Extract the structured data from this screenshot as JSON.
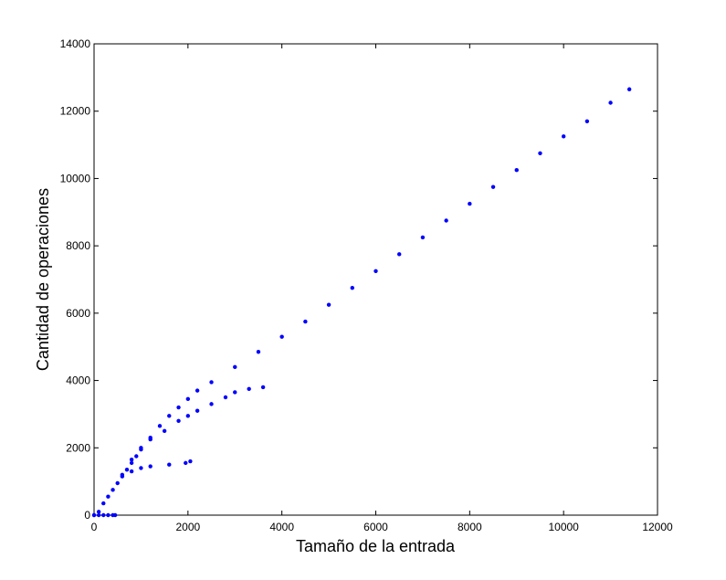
{
  "chart_data": {
    "type": "scatter",
    "title": "",
    "xlabel": "Tamaño de la entrada",
    "ylabel": "Cantidad de operaciones",
    "xlim": [
      0,
      12000
    ],
    "ylim": [
      0,
      14000
    ],
    "x_ticks": [
      0,
      2000,
      4000,
      6000,
      8000,
      10000,
      12000
    ],
    "y_ticks": [
      0,
      2000,
      4000,
      6000,
      8000,
      10000,
      12000,
      14000
    ],
    "grid": false,
    "legend": "none",
    "marker_color": "#0000ff",
    "series": [
      {
        "points": [
          [
            0,
            0
          ],
          [
            100,
            100
          ],
          [
            200,
            350
          ],
          [
            300,
            550
          ],
          [
            400,
            750
          ],
          [
            500,
            950
          ],
          [
            600,
            1150
          ],
          [
            700,
            1350
          ],
          [
            800,
            1550
          ],
          [
            900,
            1750
          ],
          [
            1000,
            1950
          ],
          [
            1200,
            2300
          ],
          [
            1400,
            2650
          ],
          [
            1600,
            2950
          ],
          [
            1800,
            3200
          ],
          [
            2000,
            3450
          ],
          [
            2200,
            3700
          ],
          [
            2500,
            3950
          ],
          [
            3000,
            4400
          ],
          [
            3500,
            4850
          ],
          [
            4000,
            5300
          ],
          [
            4500,
            5750
          ],
          [
            5000,
            6250
          ],
          [
            5500,
            6750
          ],
          [
            6000,
            7250
          ],
          [
            6500,
            7750
          ],
          [
            7000,
            8250
          ],
          [
            7500,
            8750
          ],
          [
            8000,
            9250
          ],
          [
            8500,
            9750
          ],
          [
            9000,
            10250
          ],
          [
            9500,
            10750
          ],
          [
            10000,
            11250
          ],
          [
            10500,
            11700
          ],
          [
            11000,
            12250
          ],
          [
            11400,
            12650
          ]
        ]
      },
      {
        "points": [
          [
            800,
            1650
          ],
          [
            1000,
            2000
          ],
          [
            1200,
            2250
          ],
          [
            1500,
            2500
          ],
          [
            1800,
            2800
          ],
          [
            2000,
            2950
          ],
          [
            2200,
            3100
          ],
          [
            2500,
            3300
          ],
          [
            2800,
            3500
          ],
          [
            3000,
            3650
          ],
          [
            3300,
            3750
          ],
          [
            3600,
            3800
          ]
        ]
      },
      {
        "points": [
          [
            600,
            1200
          ],
          [
            800,
            1300
          ],
          [
            1000,
            1400
          ],
          [
            1200,
            1450
          ],
          [
            1600,
            1500
          ],
          [
            1950,
            1550
          ],
          [
            2050,
            1600
          ]
        ]
      },
      {
        "points": [
          [
            0,
            0
          ],
          [
            100,
            0
          ],
          [
            200,
            0
          ],
          [
            300,
            0
          ],
          [
            400,
            0
          ],
          [
            450,
            0
          ]
        ]
      }
    ]
  }
}
